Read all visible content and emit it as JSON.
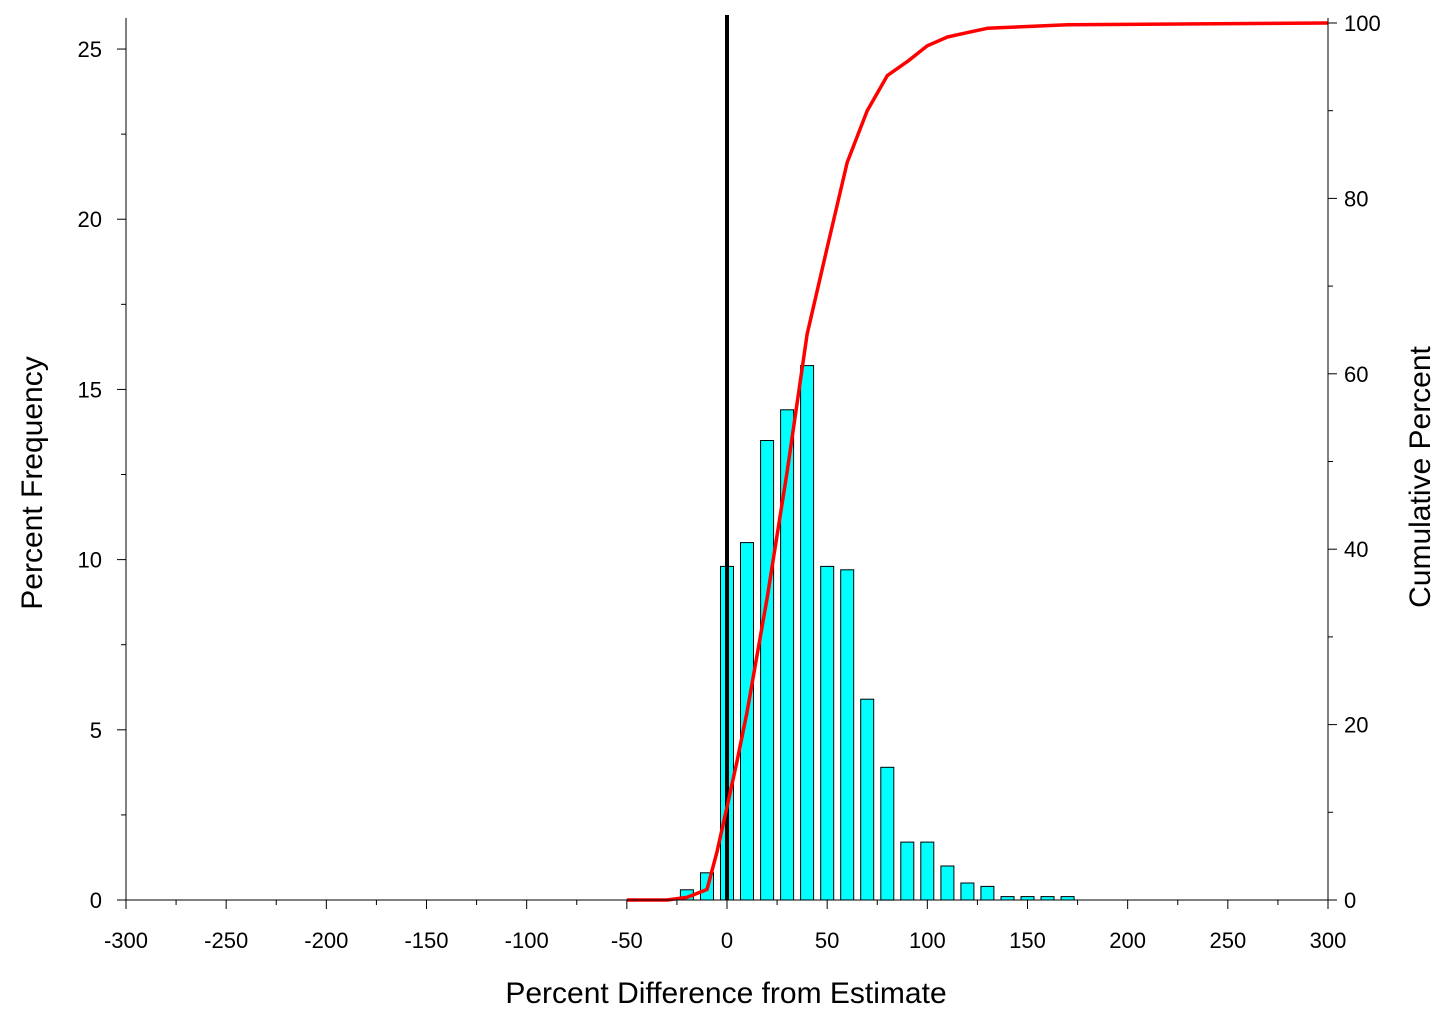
{
  "chart_data": {
    "type": "bar",
    "title": "",
    "xlabel": "Percent Difference from Estimate",
    "ylabel": "Percent Frequency",
    "y2label": "Cumulative Percent",
    "xlim": [
      -300,
      300
    ],
    "ylim": [
      0,
      26
    ],
    "y2lim": [
      0,
      100
    ],
    "x_ticks": [
      -300,
      -250,
      -200,
      -150,
      -100,
      -50,
      0,
      50,
      100,
      150,
      200,
      250,
      300
    ],
    "y_ticks": [
      0,
      5,
      10,
      15,
      20,
      25
    ],
    "y2_ticks": [
      0,
      20,
      40,
      60,
      80,
      100
    ],
    "grid": false,
    "legend": "none",
    "reference_line_x": 0,
    "series": [
      {
        "type": "bar",
        "color": "#00ffff",
        "x": [
          -20,
          -10,
          0,
          10,
          20,
          30,
          40,
          50,
          60,
          70,
          80,
          90,
          100,
          110,
          120,
          130,
          140,
          150,
          160,
          170
        ],
        "values": [
          0.3,
          0.8,
          9.8,
          10.5,
          13.5,
          14.4,
          15.7,
          9.8,
          9.7,
          5.9,
          3.9,
          1.7,
          1.7,
          1.0,
          0.5,
          0.4,
          0.1,
          0.1,
          0.1,
          0.1
        ]
      },
      {
        "type": "line",
        "axis": "right",
        "color": "#ff0000",
        "x": [
          -50,
          -40,
          -30,
          -20,
          -10,
          -5,
          0,
          5,
          10,
          20,
          30,
          40,
          50,
          60,
          70,
          80,
          90,
          100,
          110,
          120,
          130,
          140,
          150,
          160,
          170,
          300
        ],
        "values": [
          0,
          0,
          0,
          0.3,
          1.2,
          5.5,
          10.6,
          15.8,
          21.4,
          34.4,
          48.8,
          64.5,
          74.4,
          84.1,
          90.0,
          94.0,
          95.6,
          97.4,
          98.4,
          98.9,
          99.4,
          99.5,
          99.6,
          99.7,
          99.8,
          100
        ]
      }
    ]
  }
}
